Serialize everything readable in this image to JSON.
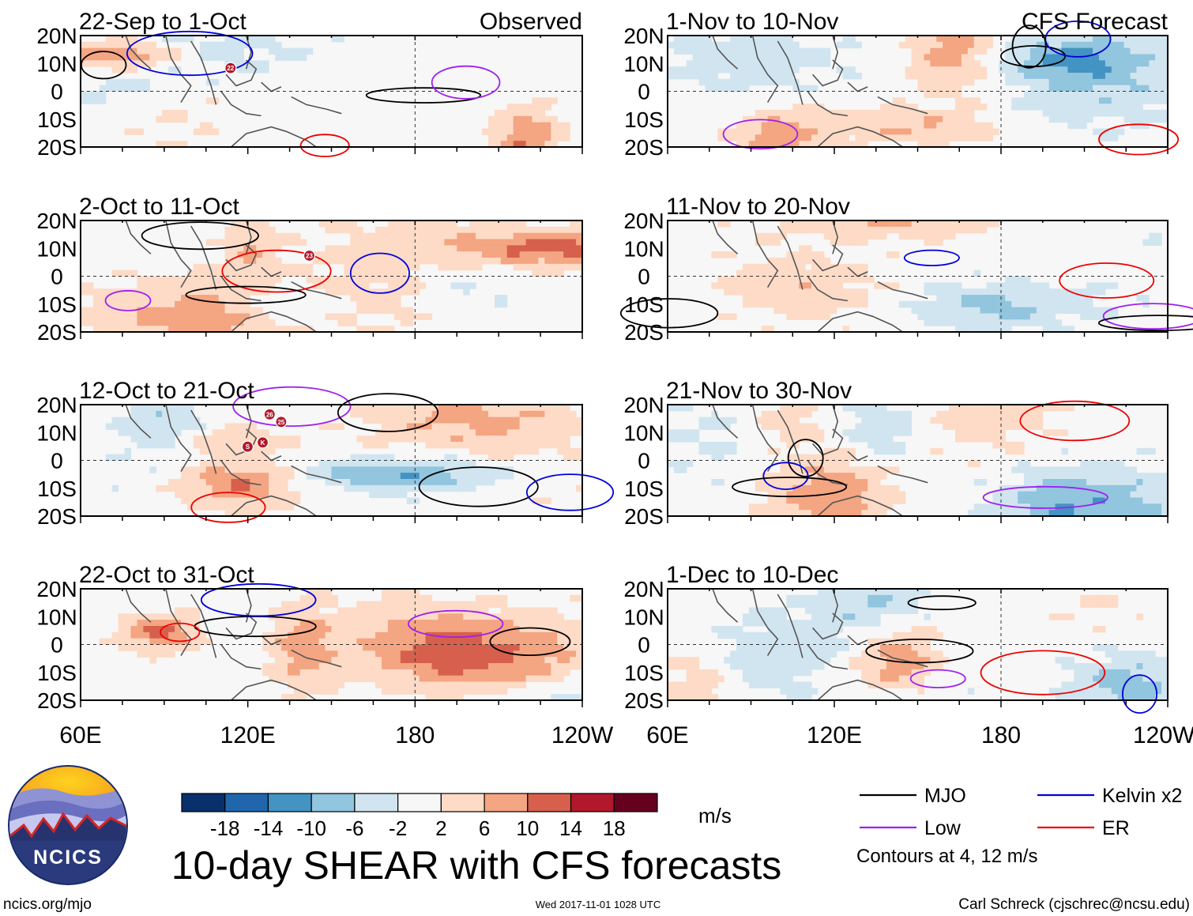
{
  "chart_data": {
    "type": "heatmap",
    "title": "10-day SHEAR with CFS forecasts",
    "units": "m/s",
    "latitude_labels": [
      "20N",
      "10N",
      "0",
      "10S",
      "20S"
    ],
    "longitude_labels": [
      "60E",
      "120E",
      "180",
      "120W"
    ],
    "column_headers": {
      "observed": "Observed",
      "forecast": "CFS Forecast"
    },
    "panels_observed": [
      {
        "period": "22-Sep to 1-Oct",
        "storm_labels": [
          "22"
        ]
      },
      {
        "period": "2-Oct to 11-Oct",
        "storm_labels": [
          "23"
        ]
      },
      {
        "period": "12-Oct to 21-Oct",
        "storm_labels": [
          "K",
          "26",
          "25",
          "S"
        ]
      },
      {
        "period": "22-Oct to 31-Oct",
        "storm_labels": []
      }
    ],
    "panels_forecast": [
      {
        "period": "1-Nov to 10-Nov"
      },
      {
        "period": "11-Nov to 20-Nov"
      },
      {
        "period": "21-Nov to 30-Nov"
      },
      {
        "period": "1-Dec to 10-Dec"
      }
    ],
    "colorbar": {
      "ticks": [
        "-18",
        "-14",
        "-10",
        "-6",
        "-2",
        "2",
        "6",
        "10",
        "14",
        "18"
      ],
      "colors": [
        "#08306b",
        "#2166ac",
        "#4393c3",
        "#92c5de",
        "#d1e5f0",
        "#f7f7f7",
        "#fddbc7",
        "#f4a582",
        "#d6604d",
        "#b2182b",
        "#67001f"
      ]
    },
    "legend": [
      {
        "label": "MJO",
        "color": "#000000"
      },
      {
        "label": "Kelvin x2",
        "color": "#0000dd"
      },
      {
        "label": "Low",
        "color": "#a020f0"
      },
      {
        "label": "ER",
        "color": "#ee0000"
      }
    ],
    "contour_note": "Contours at 4, 12 m/s"
  },
  "footer": {
    "logo_text": "NCICS",
    "website": "ncics.org/mjo",
    "timestamp": "Wed 2017-11-01 1028 UTC",
    "author": "Carl Schreck (cjschrec@ncsu.edu)"
  }
}
